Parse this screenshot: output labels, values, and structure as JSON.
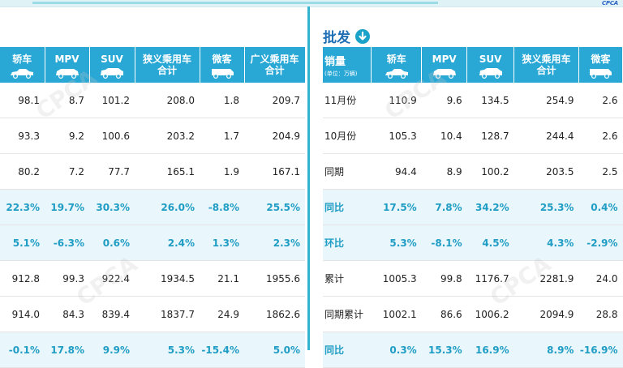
{
  "header": {
    "logo_text": "CPCA",
    "accent_color": "#29a8d6"
  },
  "right_section": {
    "title": "批发",
    "icon": "download-circle-icon"
  },
  "left_table": {
    "headers": [
      {
        "label": "轿车",
        "icon": "sedan-icon"
      },
      {
        "label": "MPV",
        "icon": "mpv-icon"
      },
      {
        "label": "SUV",
        "icon": "suv-icon"
      },
      {
        "label": "狭义乘用车\n合计"
      },
      {
        "label": "微客",
        "icon": "minivan-icon"
      },
      {
        "label": "广义乘用车\n合计"
      }
    ],
    "rows": [
      {
        "values": [
          "98.1",
          "8.7",
          "101.2",
          "208.0",
          "1.8",
          "209.7"
        ],
        "highlight": false
      },
      {
        "values": [
          "93.3",
          "9.2",
          "100.6",
          "203.2",
          "1.7",
          "204.9"
        ],
        "highlight": false
      },
      {
        "values": [
          "80.2",
          "7.2",
          "77.7",
          "165.1",
          "1.9",
          "167.1"
        ],
        "highlight": false
      },
      {
        "values": [
          "22.3%",
          "19.7%",
          "30.3%",
          "26.0%",
          "-8.8%",
          "25.5%"
        ],
        "highlight": true
      },
      {
        "values": [
          "5.1%",
          "-6.3%",
          "0.6%",
          "2.4%",
          "1.3%",
          "2.3%"
        ],
        "highlight": true
      },
      {
        "values": [
          "912.8",
          "99.3",
          "922.4",
          "1934.5",
          "21.1",
          "1955.6"
        ],
        "highlight": false
      },
      {
        "values": [
          "914.0",
          "84.3",
          "839.4",
          "1837.7",
          "24.9",
          "1862.6"
        ],
        "highlight": false
      },
      {
        "values": [
          "-0.1%",
          "17.8%",
          "9.9%",
          "5.3%",
          "-15.4%",
          "5.0%"
        ],
        "highlight": true
      }
    ]
  },
  "right_table": {
    "first_header": {
      "label": "销量",
      "unit": "(单位：万辆)"
    },
    "headers": [
      {
        "label": "轿车",
        "icon": "sedan-icon"
      },
      {
        "label": "MPV",
        "icon": "mpv-icon"
      },
      {
        "label": "SUV",
        "icon": "suv-icon"
      },
      {
        "label": "狭义乘用车\n合计"
      },
      {
        "label": "微客",
        "icon": "minivan-icon"
      }
    ],
    "rows": [
      {
        "label": "11月份",
        "values": [
          "110.9",
          "9.6",
          "134.5",
          "254.9",
          "2.6"
        ],
        "highlight": false
      },
      {
        "label": "10月份",
        "values": [
          "105.3",
          "10.4",
          "128.7",
          "244.4",
          "2.6"
        ],
        "highlight": false
      },
      {
        "label": "同期",
        "values": [
          "94.4",
          "8.9",
          "100.2",
          "203.5",
          "2.5"
        ],
        "highlight": false
      },
      {
        "label": "同比",
        "values": [
          "17.5%",
          "7.8%",
          "34.2%",
          "25.3%",
          "0.4%"
        ],
        "highlight": true
      },
      {
        "label": "环比",
        "values": [
          "5.3%",
          "-8.1%",
          "4.5%",
          "4.3%",
          "-2.9%"
        ],
        "highlight": true
      },
      {
        "label": "累计",
        "values": [
          "1005.3",
          "99.8",
          "1176.7",
          "2281.9",
          "24.0"
        ],
        "highlight": false
      },
      {
        "label": "同期累计",
        "values": [
          "1002.1",
          "86.6",
          "1006.2",
          "2094.9",
          "28.8"
        ],
        "highlight": false
      },
      {
        "label": "同比",
        "values": [
          "0.3%",
          "15.3%",
          "16.9%",
          "8.9%",
          "-16.9%"
        ],
        "highlight": true
      }
    ]
  }
}
